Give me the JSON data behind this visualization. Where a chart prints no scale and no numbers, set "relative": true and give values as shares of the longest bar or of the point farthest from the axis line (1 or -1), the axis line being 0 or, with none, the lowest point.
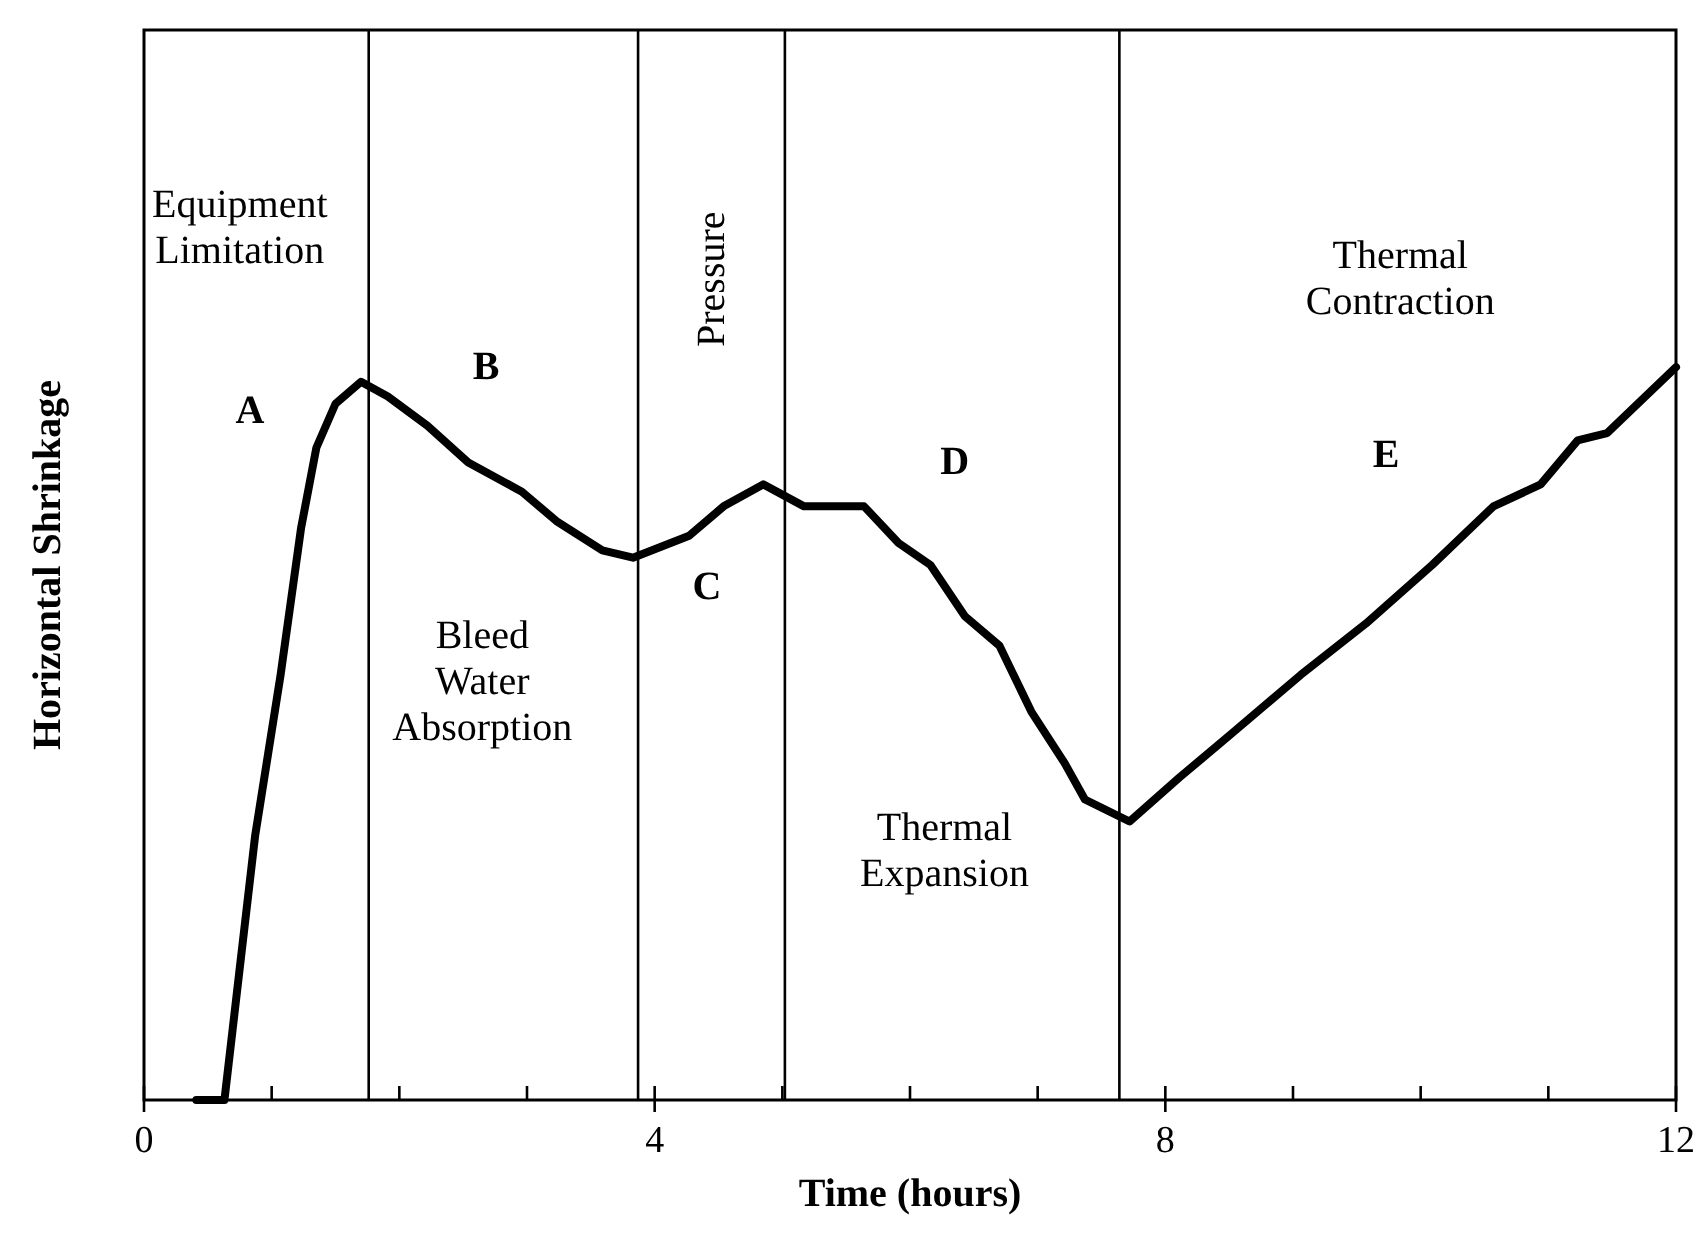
{
  "chart_data": {
    "type": "line",
    "xlabel": "Time (hours)",
    "ylabel": "Horizontal Shrinkage",
    "relative": true,
    "xlim": [
      0,
      12
    ],
    "xticks": [
      0,
      {
        "value": 1,
        "label": null
      },
      {
        "value": 2,
        "label": null
      },
      {
        "value": 3,
        "label": null
      },
      4,
      {
        "value": 5,
        "label": null
      },
      {
        "value": 6,
        "label": null
      },
      {
        "value": 7,
        "label": null
      },
      8,
      {
        "value": 9,
        "label": null
      },
      {
        "value": 10,
        "label": null
      },
      {
        "value": 11,
        "label": null
      },
      12
    ],
    "series": [
      {
        "color": "#000000",
        "x": [
          0.41,
          0.63,
          0.87,
          1.07,
          1.23,
          1.35,
          1.5,
          1.7,
          1.91,
          2.22,
          2.54,
          2.96,
          3.23,
          3.59,
          3.83,
          4.27,
          4.54,
          4.85,
          5.17,
          5.64,
          5.91,
          6.16,
          6.43,
          6.7,
          6.95,
          7.21,
          7.37,
          7.72,
          8.11,
          8.52,
          9.06,
          9.57,
          10.09,
          10.57,
          10.94,
          11.23,
          11.46,
          12
        ],
        "values": [
          0,
          0,
          0.36,
          0.58,
          0.78,
          0.89,
          0.95,
          0.98,
          0.96,
          0.92,
          0.87,
          0.83,
          0.79,
          0.75,
          0.74,
          0.77,
          0.81,
          0.84,
          0.81,
          0.81,
          0.76,
          0.73,
          0.66,
          0.62,
          0.53,
          0.46,
          0.41,
          0.38,
          0.44,
          0.5,
          0.58,
          0.65,
          0.73,
          0.81,
          0.84,
          0.9,
          0.91,
          1
        ]
      }
    ],
    "ref_lines": [
      {
        "axis": "x",
        "value": 1.76,
        "color": "#000000"
      },
      {
        "axis": "x",
        "value": 3.87,
        "color": "#000000"
      },
      {
        "axis": "x",
        "value": 5.02,
        "color": "#000000"
      },
      {
        "axis": "x",
        "value": 7.64,
        "color": "#000000"
      }
    ],
    "annotations": [
      "Equipment\nLimitation",
      "A",
      "B",
      "Pressure",
      "C",
      "D",
      "E",
      "Thermal\nContraction",
      "Bleed\nWater\nAbsorption",
      "Thermal\nExpansion"
    ]
  }
}
